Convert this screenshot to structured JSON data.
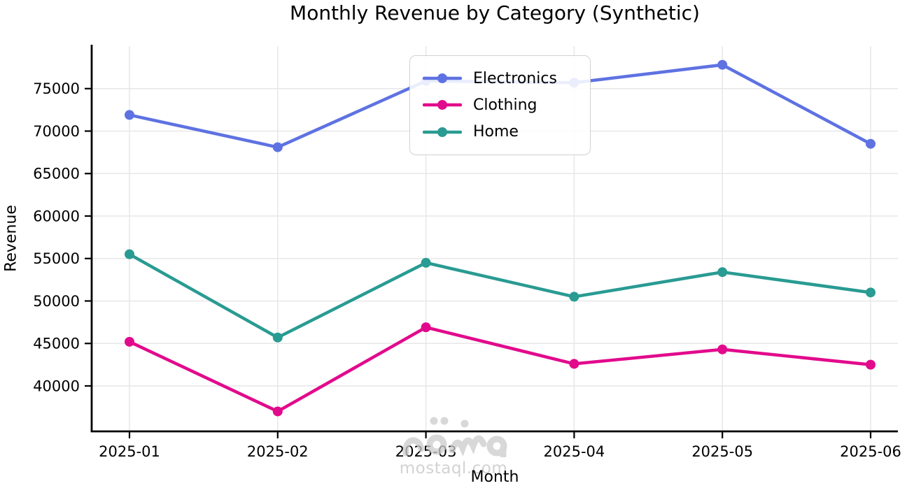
{
  "chart_data": {
    "type": "line",
    "title": "Monthly Revenue by Category (Synthetic)",
    "xlabel": "Month",
    "ylabel": "Revenue",
    "categories": [
      "2025-01",
      "2025-02",
      "2025-03",
      "2025-04",
      "2025-05",
      "2025-06"
    ],
    "series": [
      {
        "name": "Electronics",
        "color": "#5E72E2",
        "values": [
          71900,
          68100,
          75900,
          75700,
          77800,
          68500
        ]
      },
      {
        "name": "Clothing",
        "color": "#E20A8C",
        "values": [
          45200,
          37000,
          46900,
          42600,
          44300,
          42500
        ]
      },
      {
        "name": "Home",
        "color": "#299B92",
        "values": [
          55500,
          45700,
          54500,
          50500,
          53400,
          51000
        ]
      }
    ],
    "yticks": [
      40000,
      45000,
      50000,
      55000,
      60000,
      65000,
      70000,
      75000
    ],
    "ylim": [
      34650,
      80000
    ],
    "grid": true,
    "legend_position": "upper center",
    "marker": "circle",
    "line_width": 4.5
  },
  "watermark": {
    "logo_text": "مستقل",
    "domain": "mostaql.com"
  },
  "colors": {
    "background": "#FFFFFF",
    "grid": "#E7E7EA",
    "axis": "#000000",
    "text": "#000000",
    "watermark": "#CBCBCB"
  }
}
